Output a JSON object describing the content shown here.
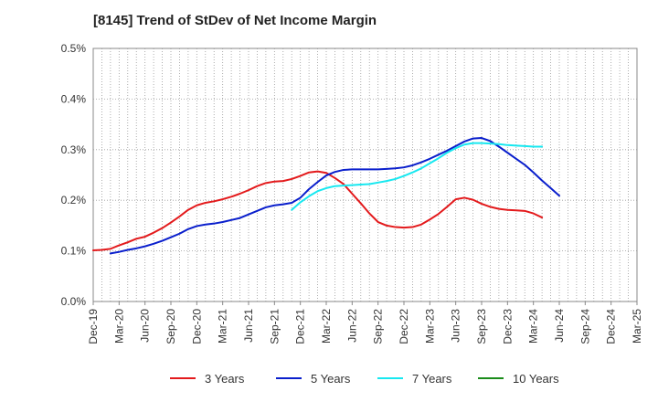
{
  "chart_data": {
    "type": "line",
    "title": "[8145]  Trend of StDev of Net Income Margin",
    "xlabel": "",
    "ylabel": "",
    "ylim": [
      0,
      0.5
    ],
    "y_unit": "%",
    "yticks": [
      "0.0%",
      "0.1%",
      "0.2%",
      "0.3%",
      "0.4%",
      "0.5%"
    ],
    "xticks": [
      "Dec-19",
      "Mar-20",
      "Jun-20",
      "Sep-20",
      "Dec-20",
      "Mar-21",
      "Jun-21",
      "Sep-21",
      "Dec-21",
      "Mar-22",
      "Jun-22",
      "Sep-22",
      "Dec-22",
      "Mar-23",
      "Jun-23",
      "Sep-23",
      "Dec-23",
      "Mar-24",
      "Jun-24",
      "Sep-24",
      "Dec-24",
      "Mar-25"
    ],
    "grid": true,
    "legend_position": "bottom",
    "series": [
      {
        "name": "3 Years",
        "color": "#e31a1c",
        "start_index": 0,
        "values": [
          0.101,
          0.102,
          0.104,
          0.111,
          0.117,
          0.124,
          0.128,
          0.136,
          0.145,
          0.156,
          0.168,
          0.181,
          0.19,
          0.195,
          0.198,
          0.202,
          0.207,
          0.213,
          0.22,
          0.228,
          0.234,
          0.237,
          0.238,
          0.242,
          0.248,
          0.255,
          0.257,
          0.254,
          0.244,
          0.232,
          0.213,
          0.194,
          0.174,
          0.157,
          0.15,
          0.147,
          0.146,
          0.147,
          0.152,
          0.162,
          0.173,
          0.187,
          0.202,
          0.205,
          0.201,
          0.193,
          0.187,
          0.183,
          0.181,
          0.18,
          0.179,
          0.174,
          0.166
        ]
      },
      {
        "name": "5 Years",
        "color": "#0a1fcc",
        "start_index": 2,
        "values": [
          0.095,
          0.098,
          0.102,
          0.105,
          0.109,
          0.114,
          0.12,
          0.127,
          0.134,
          0.143,
          0.149,
          0.152,
          0.154,
          0.157,
          0.161,
          0.165,
          0.172,
          0.179,
          0.186,
          0.19,
          0.192,
          0.195,
          0.205,
          0.222,
          0.236,
          0.249,
          0.256,
          0.26,
          0.261,
          0.261,
          0.261,
          0.261,
          0.262,
          0.263,
          0.265,
          0.269,
          0.275,
          0.282,
          0.29,
          0.298,
          0.307,
          0.316,
          0.322,
          0.323,
          0.317,
          0.306,
          0.294,
          0.282,
          0.27,
          0.255,
          0.239,
          0.224,
          0.209
        ]
      },
      {
        "name": "7 Years",
        "color": "#17e8f0",
        "start_index": 23,
        "values": [
          0.181,
          0.196,
          0.208,
          0.218,
          0.224,
          0.228,
          0.229,
          0.23,
          0.231,
          0.232,
          0.235,
          0.238,
          0.242,
          0.248,
          0.255,
          0.263,
          0.273,
          0.283,
          0.294,
          0.303,
          0.31,
          0.313,
          0.313,
          0.312,
          0.311,
          0.309,
          0.308,
          0.307,
          0.306,
          0.306
        ]
      },
      {
        "name": "10 Years",
        "color": "#1a8c1a",
        "start_index": 0,
        "values": []
      }
    ]
  }
}
